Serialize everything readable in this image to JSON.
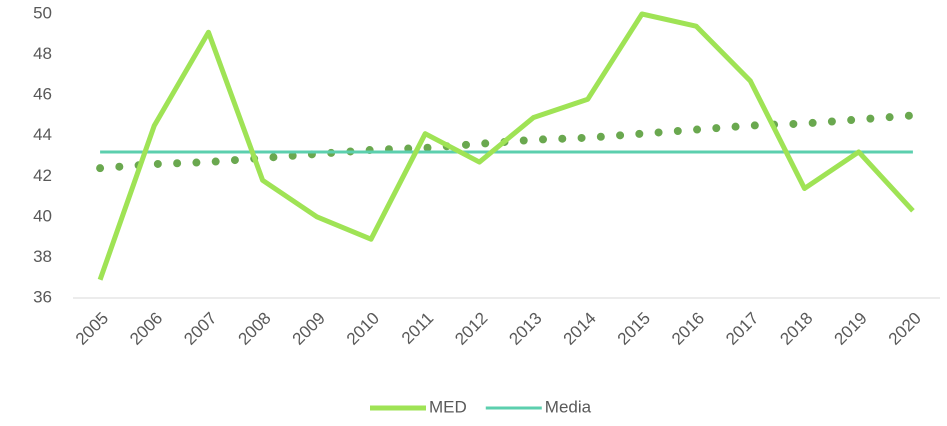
{
  "chart_data": {
    "type": "line",
    "categories": [
      "2005",
      "2006",
      "2007",
      "2008",
      "2009",
      "2010",
      "2011",
      "2012",
      "2013",
      "2014",
      "2015",
      "2016",
      "2017",
      "2018",
      "2019",
      "2020"
    ],
    "series": [
      {
        "name": "MED",
        "color": "#9fe355",
        "values": [
          36.9,
          44.5,
          49.1,
          41.8,
          40.0,
          38.9,
          44.1,
          42.7,
          44.9,
          45.8,
          50.0,
          49.4,
          46.7,
          41.4,
          43.2,
          40.3
        ]
      },
      {
        "name": "Media",
        "color": "#5ccfae",
        "values": [
          43.2,
          43.2,
          43.2,
          43.2,
          43.2,
          43.2,
          43.2,
          43.2,
          43.2,
          43.2,
          43.2,
          43.2,
          43.2,
          43.2,
          43.2,
          43.2
        ]
      },
      {
        "color": "#6aa84f",
        "dotted": true,
        "values": [
          42.4,
          42.6,
          42.7,
          42.9,
          43.1,
          43.3,
          43.4,
          43.6,
          43.8,
          43.9,
          44.1,
          44.3,
          44.5,
          44.6,
          44.8,
          45.0
        ]
      }
    ],
    "ylim": [
      36,
      50
    ],
    "yticks": [
      36,
      38,
      40,
      42,
      44,
      46,
      48,
      50
    ],
    "grid": false,
    "legend": "bottom"
  }
}
